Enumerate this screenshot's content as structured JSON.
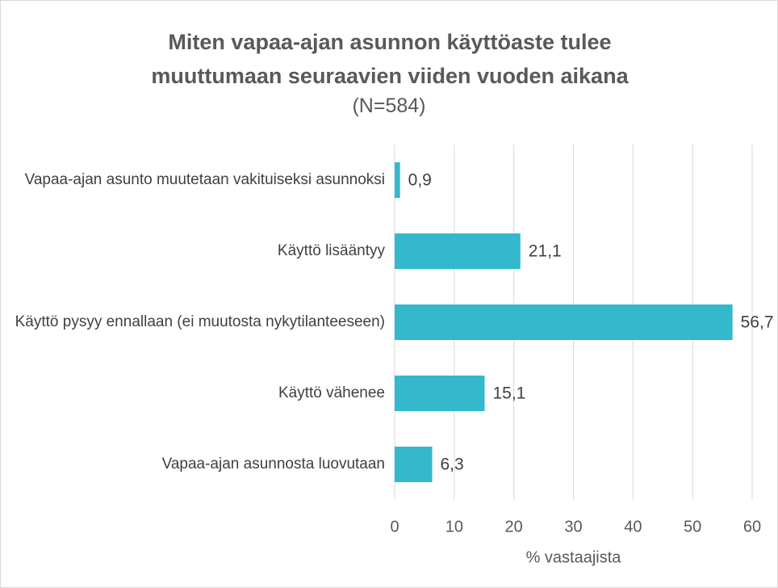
{
  "chart_data": {
    "type": "bar",
    "orientation": "horizontal",
    "title": "Miten vapaa-ajan asunnon käyttöaste tulee muuttumaan seuraavien viiden vuoden aikana",
    "subtitle": "(N=584)",
    "categories": [
      "Vapaa-ajan asunto muutetaan vakituiseksi asunnoksi",
      "Käyttö lisääntyy",
      "Käyttö pysyy ennallaan (ei muutosta nykytilanteeseen)",
      "Käyttö vähenee",
      "Vapaa-ajan asunnosta luovutaan"
    ],
    "values": [
      0.9,
      21.1,
      56.7,
      15.1,
      6.3
    ],
    "value_labels": [
      "0,9",
      "21,1",
      "56,7",
      "15,1",
      "6,3"
    ],
    "color": "#33b8cc",
    "xlabel": "% vastaajista",
    "xlim": [
      0,
      60
    ],
    "xticks": [
      0,
      10,
      20,
      30,
      40,
      50,
      60
    ],
    "grid": true
  }
}
